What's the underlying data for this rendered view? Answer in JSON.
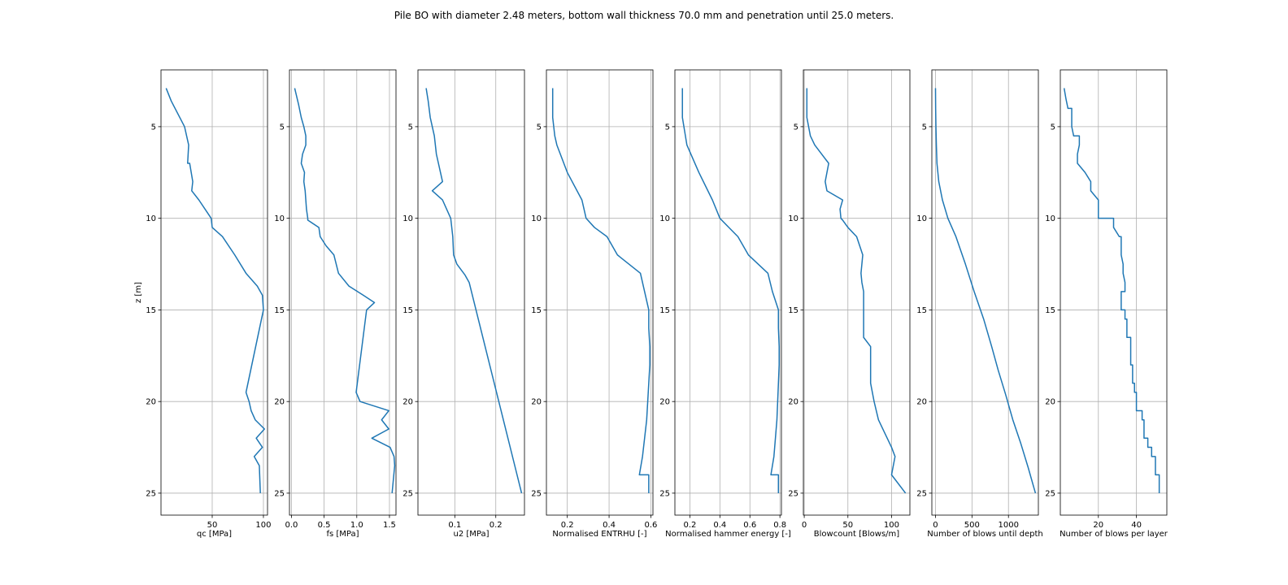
{
  "title": "Pile BO with diameter 2.48 meters, bottom wall thickness 70.0 mm and penetration until 25.0 meters.",
  "colors": {
    "line": "#1f77b4",
    "grid": "#b0b0b0",
    "axes": "#000000"
  },
  "chart_data": [
    {
      "type": "line",
      "xlabel": "qc [MPa]",
      "ylabel": "z [m]",
      "xlim": [
        0,
        104
      ],
      "ylim": [
        26.2,
        1.9
      ],
      "xticks": [
        50,
        100
      ],
      "yticks": [
        5,
        10,
        15,
        20,
        25
      ],
      "grid": true,
      "series": [
        {
          "x": [
            5,
            10,
            23,
            25,
            27,
            26,
            28,
            31,
            30,
            37,
            49,
            50,
            60,
            72,
            83,
            94,
            99,
            100,
            83,
            86,
            88,
            92,
            101,
            93,
            99,
            91,
            96,
            97
          ],
          "y": [
            2.9,
            3.6,
            5,
            5.5,
            6,
            7,
            7,
            8,
            8.5,
            9,
            10,
            10.5,
            11,
            12,
            13,
            13.7,
            14.2,
            15,
            19.5,
            20,
            20.5,
            21,
            21.5,
            22,
            22.5,
            23,
            23.5,
            25
          ]
        }
      ],
      "grid_on": true
    },
    {
      "type": "line",
      "xlabel": "fs [MPa]",
      "ylabel": "",
      "xlim": [
        -0.03,
        1.6
      ],
      "ylim": [
        26.2,
        1.9
      ],
      "xticks": [
        0.0,
        0.5,
        1.0,
        1.5
      ],
      "xticklabels": [
        "0.0",
        "0.5",
        "1.0",
        "1.5"
      ],
      "yticks": [
        5,
        10,
        15,
        20,
        25
      ],
      "grid": true,
      "series": [
        {
          "x": [
            0.05,
            0.11,
            0.15,
            0.19,
            0.22,
            0.22,
            0.17,
            0.15,
            0.2,
            0.19,
            0.21,
            0.22,
            0.23,
            0.25,
            0.25,
            0.42,
            0.44,
            0.53,
            0.65,
            0.72,
            0.88,
            1.1,
            1.27,
            1.15,
            0.99,
            1.05,
            1.49,
            1.38,
            1.49,
            1.23,
            1.51,
            1.57,
            1.58,
            1.54
          ],
          "y": [
            2.9,
            3.8,
            4.5,
            5,
            5.5,
            6,
            6.5,
            7,
            7.5,
            8,
            8.5,
            9,
            9.5,
            10,
            10.1,
            10.5,
            11,
            11.5,
            12,
            13,
            13.7,
            14.2,
            14.6,
            15,
            19.5,
            20,
            20.5,
            21,
            21.5,
            22,
            22.5,
            23,
            23.5,
            25
          ]
        }
      ],
      "grid_on": true
    },
    {
      "type": "line",
      "xlabel": "u2 [MPa]",
      "ylabel": "",
      "xlim": [
        0.01,
        0.27
      ],
      "ylim": [
        26.2,
        1.9
      ],
      "xticks": [
        0.1,
        0.2
      ],
      "xticklabels": [
        "0.1",
        "0.2"
      ],
      "yticks": [
        5,
        10,
        15,
        20,
        25
      ],
      "grid": true,
      "series": [
        {
          "x": [
            0.03,
            0.035,
            0.04,
            0.045,
            0.05,
            0.055,
            0.06,
            0.065,
            0.07,
            0.045,
            0.07,
            0.09,
            0.095,
            0.096,
            0.097,
            0.105,
            0.125,
            0.135,
            0.263
          ],
          "y": [
            2.9,
            3.6,
            4.5,
            5,
            5.5,
            6.5,
            7,
            7.5,
            8,
            8.5,
            9,
            10,
            11,
            11.5,
            12,
            12.5,
            13.1,
            13.5,
            25
          ]
        }
      ],
      "grid_on": true
    },
    {
      "type": "line",
      "xlabel": "Normalised ENTRHU [-]",
      "ylabel": "",
      "xlim": [
        0.1,
        0.61
      ],
      "ylim": [
        26.2,
        1.9
      ],
      "xticks": [
        0.2,
        0.4,
        0.6
      ],
      "xticklabels": [
        "0.2",
        "0.4",
        "0.6"
      ],
      "yticks": [
        5,
        10,
        15,
        20,
        25
      ],
      "grid": true,
      "series": [
        {
          "x": [
            0.13,
            0.13,
            0.13,
            0.135,
            0.14,
            0.15,
            0.2,
            0.27,
            0.29,
            0.33,
            0.39,
            0.44,
            0.55,
            0.59,
            0.59,
            0.595,
            0.595,
            0.59,
            0.585,
            0.58,
            0.57,
            0.56,
            0.545,
            0.59,
            0.59
          ],
          "y": [
            2.9,
            3.8,
            4.5,
            5,
            5.5,
            6,
            7.5,
            9,
            10,
            10.5,
            11,
            12,
            13,
            15,
            16,
            17,
            18,
            19,
            20,
            21,
            22,
            23,
            24,
            24,
            25
          ]
        }
      ],
      "grid_on": true
    },
    {
      "type": "line",
      "xlabel": "Normalised hammer energy [-]",
      "ylabel": "",
      "xlim": [
        0.1,
        0.81
      ],
      "ylim": [
        26.2,
        1.9
      ],
      "xticks": [
        0.2,
        0.4,
        0.6,
        0.8
      ],
      "xticklabels": [
        "0.2",
        "0.4",
        "0.6",
        "0.8"
      ],
      "yticks": [
        5,
        10,
        15,
        20,
        25
      ],
      "grid": true,
      "series": [
        {
          "x": [
            0.15,
            0.15,
            0.15,
            0.16,
            0.17,
            0.18,
            0.26,
            0.35,
            0.4,
            0.52,
            0.59,
            0.72,
            0.75,
            0.79,
            0.79,
            0.795,
            0.795,
            0.79,
            0.785,
            0.78,
            0.77,
            0.76,
            0.74,
            0.79,
            0.79
          ],
          "y": [
            2.9,
            3.8,
            4.5,
            5,
            5.5,
            6,
            7.5,
            9,
            10,
            11,
            12,
            13,
            14,
            15,
            16,
            17,
            18,
            19,
            20,
            21,
            22,
            23,
            24,
            24,
            25
          ]
        }
      ],
      "grid_on": true
    },
    {
      "type": "line",
      "xlabel": "Blowcount [Blows/m]",
      "ylabel": "",
      "xlim": [
        -1,
        121
      ],
      "ylim": [
        26.2,
        1.9
      ],
      "xticks": [
        0,
        50,
        100
      ],
      "yticks": [
        5,
        10,
        15,
        20,
        25
      ],
      "grid": true,
      "series": [
        {
          "x": [
            3,
            3,
            3,
            5,
            7,
            12,
            28,
            24,
            26,
            44,
            41,
            42,
            44,
            50,
            60,
            67,
            65,
            66,
            68,
            68,
            68,
            68,
            68,
            76,
            76,
            76,
            80,
            85,
            100,
            104,
            100,
            116
          ],
          "y": [
            2.9,
            3.8,
            4.5,
            5,
            5.5,
            6,
            7,
            8,
            8.5,
            9,
            9.5,
            10,
            10.1,
            10.5,
            11,
            12,
            13,
            13.5,
            14,
            15,
            15.5,
            16,
            16.5,
            17,
            18,
            19,
            20,
            21,
            22.5,
            23,
            24,
            25
          ]
        }
      ],
      "grid_on": true
    },
    {
      "type": "line",
      "xlabel": "Number of blows until depth",
      "ylabel": "",
      "xlim": [
        -50,
        1410
      ],
      "ylim": [
        26.2,
        1.9
      ],
      "xticks": [
        0,
        500,
        1000
      ],
      "yticks": [
        5,
        10,
        15,
        20,
        25
      ],
      "grid": true,
      "series": [
        {
          "x": [
            0,
            2,
            6,
            12,
            20,
            45,
            95,
            170,
            280,
            410,
            530,
            660,
            770,
            860,
            960,
            1060,
            1170,
            1270,
            1370
          ],
          "y": [
            2.9,
            4,
            5,
            6,
            7,
            8,
            9,
            10,
            11,
            12.5,
            14,
            15.5,
            17,
            18.3,
            19.6,
            21,
            22.3,
            23.6,
            25
          ]
        }
      ],
      "grid_on": true
    },
    {
      "type": "line",
      "xlabel": "Number of blows per layer",
      "ylabel": "",
      "xlim": [
        0,
        56
      ],
      "ylim": [
        26.2,
        1.9
      ],
      "xticks": [
        20,
        40
      ],
      "yticks": [
        5,
        10,
        15,
        20,
        25
      ],
      "grid": true,
      "series": [
        {
          "x": [
            2,
            3,
            3,
            4,
            6,
            6,
            7,
            10,
            10,
            9,
            9,
            9,
            13,
            13,
            16,
            16,
            20,
            20,
            20,
            20,
            28,
            28,
            31,
            32,
            32,
            32,
            33,
            33,
            34,
            34,
            32,
            32,
            34,
            34,
            35,
            35,
            37,
            37,
            38,
            38,
            39,
            39,
            40,
            40,
            43,
            43,
            44,
            44,
            46,
            46,
            48,
            48,
            50,
            50,
            52,
            52
          ],
          "y": [
            2.9,
            3.5,
            3.5,
            4,
            4,
            5,
            5.5,
            5.5,
            6,
            6.5,
            7,
            7,
            7.5,
            7.5,
            8,
            8.5,
            9,
            9.5,
            9.7,
            10,
            10,
            10.5,
            11,
            11,
            11.5,
            12,
            12.5,
            13,
            13.5,
            14,
            14,
            15,
            15,
            15.5,
            15.5,
            16.5,
            16.5,
            18,
            18,
            19,
            19,
            19.5,
            19.5,
            20.5,
            20.5,
            21,
            21,
            22,
            22,
            22.5,
            22.5,
            23,
            23,
            24,
            24,
            25
          ]
        }
      ],
      "grid_on": true
    }
  ]
}
